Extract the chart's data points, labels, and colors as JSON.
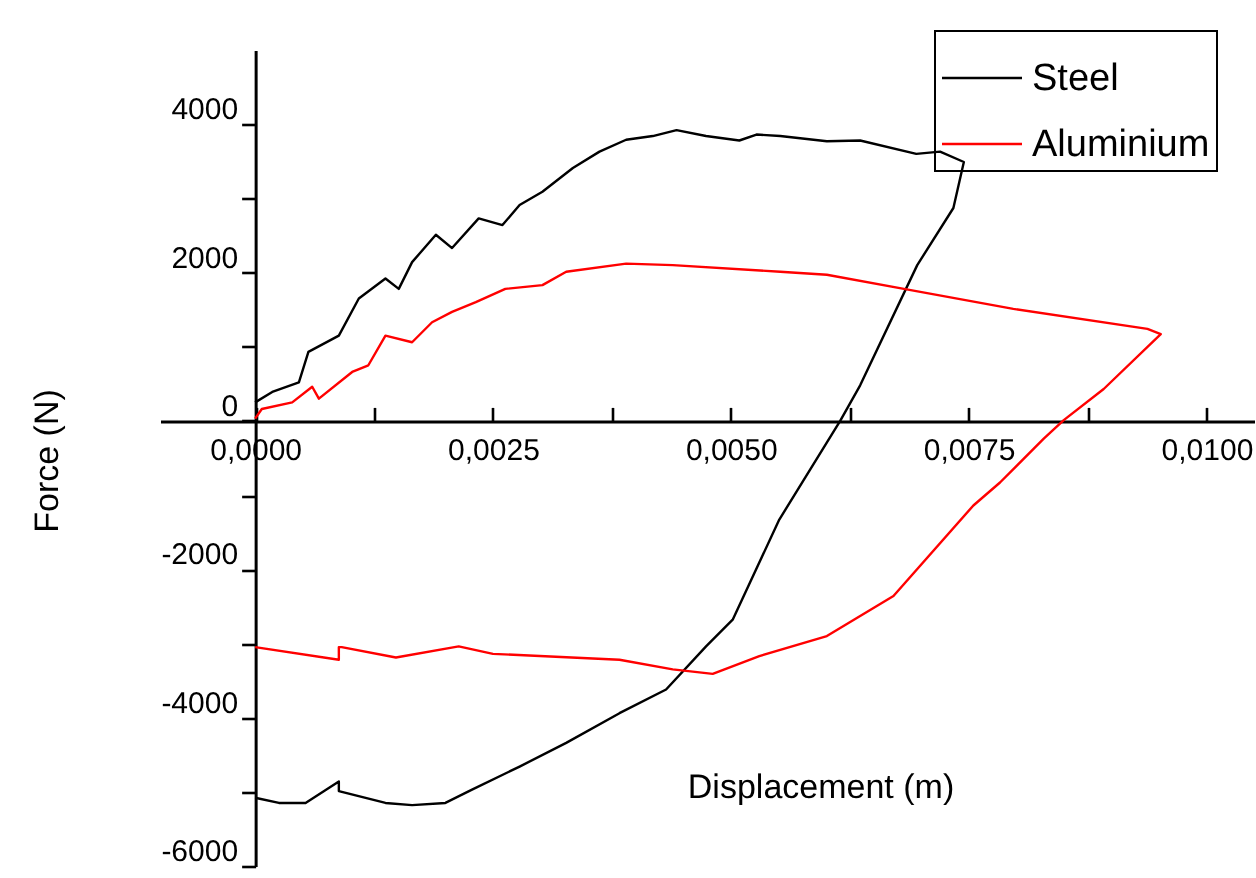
{
  "chart_data": {
    "type": "line",
    "xlabel": "Displacement (m)",
    "ylabel": "Force (N)",
    "xlim": [
      -0.001,
      0.0105
    ],
    "ylim": [
      -6000,
      5000
    ],
    "xticks": [
      {
        "value": 0,
        "label": "0,0000"
      },
      {
        "value": 0.00125,
        "label": null
      },
      {
        "value": 0.0025,
        "label": "0,0025"
      },
      {
        "value": 0.00375,
        "label": null
      },
      {
        "value": 0.005,
        "label": "0,0050"
      },
      {
        "value": 0.00625,
        "label": null
      },
      {
        "value": 0.0075,
        "label": "0,0075"
      },
      {
        "value": 0.00875,
        "label": null
      },
      {
        "value": 0.01,
        "label": "0,0100"
      }
    ],
    "yticks": [
      -6000,
      {
        "value": -5000,
        "label": null
      },
      -4000,
      {
        "value": -3000,
        "label": null
      },
      -2000,
      {
        "value": -1000,
        "label": null
      },
      0,
      {
        "value": 1000,
        "label": null
      },
      2000,
      {
        "value": 3000,
        "label": null
      },
      4000
    ],
    "legend": "top right",
    "grid": false,
    "marker": "none",
    "line_style": "solid",
    "series": [
      {
        "name": "Steel",
        "color": "#000000",
        "x": [
          0,
          0.00018,
          0.00046,
          0.00056,
          0.00088,
          0.00109,
          0.00137,
          0.00151,
          0.00165,
          0.0019,
          0.00207,
          0.00235,
          0.0026,
          0.00278,
          0.00302,
          0.00334,
          0.00362,
          0.0039,
          0.00418,
          0.00443,
          0.00474,
          0.00509,
          0.00527,
          0.00552,
          0.00601,
          0.00636,
          0.00695,
          0.0072,
          0.00745,
          0.00734,
          0.00696,
          0.00636,
          0.00615,
          0.00551,
          0.00502,
          0.00474,
          0.00432,
          0.00383,
          0.00327,
          0.00278,
          0.00228,
          0.002,
          0.00165,
          0.00137,
          0.00088,
          0.00088,
          0.00053,
          0.00025,
          0
        ],
        "values": [
          250,
          390,
          520,
          930,
          1150,
          1650,
          1920,
          1780,
          2140,
          2510,
          2330,
          2730,
          2640,
          2910,
          3090,
          3410,
          3630,
          3790,
          3840,
          3920,
          3840,
          3780,
          3860,
          3840,
          3770,
          3780,
          3600,
          3630,
          3490,
          2870,
          2100,
          480,
          0,
          -1330,
          -2680,
          -3040,
          -3620,
          -3940,
          -4340,
          -4660,
          -4970,
          -5150,
          -5180,
          -5150,
          -4990,
          -4860,
          -5150,
          -5150,
          -5080
        ]
      },
      {
        "name": "Aluminium",
        "color": "#ff0000",
        "x": [
          0,
          7e-05,
          0.00039,
          0.0006,
          0.00067,
          0.00102,
          0.00119,
          0.00137,
          0.00165,
          0.00186,
          0.00207,
          0.00232,
          0.00263,
          0.00302,
          0.00327,
          0.0039,
          0.00439,
          0.00552,
          0.00601,
          0.00682,
          0.00797,
          0.00938,
          0.00952,
          0.00892,
          0.0085,
          0.00829,
          0.00783,
          0.00755,
          0.00671,
          0.00601,
          0.0053,
          0.00481,
          0.00439,
          0.00383,
          0.0025,
          0.00214,
          0.00148,
          0.00091,
          0.00088,
          0.00088,
          0
        ],
        "values": [
          30,
          160,
          250,
          460,
          300,
          660,
          750,
          1150,
          1060,
          1330,
          1470,
          1600,
          1780,
          1830,
          2010,
          2120,
          2100,
          2010,
          1970,
          1780,
          1510,
          1240,
          1170,
          430,
          10,
          -240,
          -830,
          -1140,
          -2360,
          -2900,
          -3170,
          -3410,
          -3350,
          -3220,
          -3140,
          -3040,
          -3190,
          -3050,
          -3050,
          -3220,
          -3050
        ]
      }
    ]
  }
}
